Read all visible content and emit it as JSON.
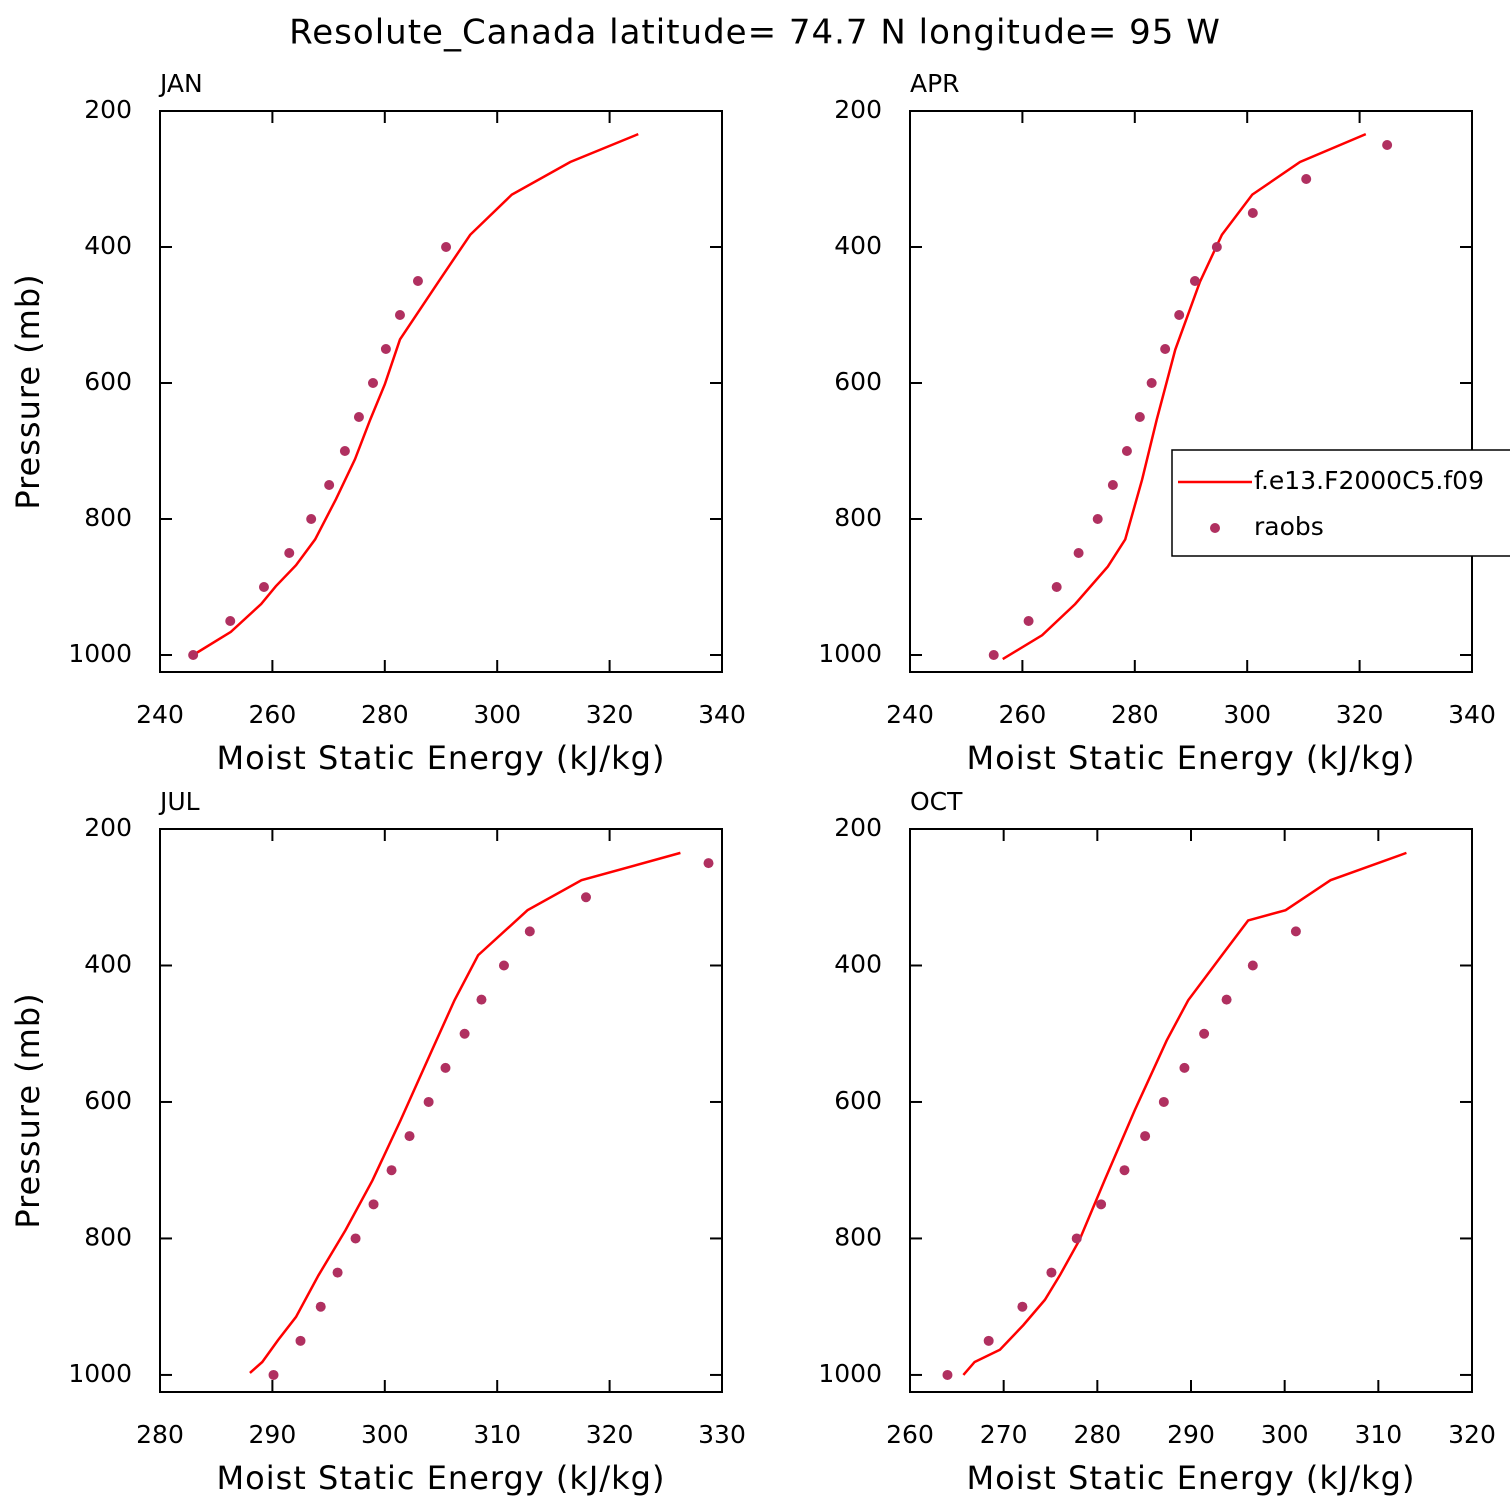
{
  "title": "Resolute_Canada  latitude= 74.7 N longitude= 95 W",
  "chart_data": [
    {
      "type": "line",
      "title": "JAN",
      "xlabel": "Moist Static Energy (kJ/kg)",
      "ylabel": "Pressure (mb)",
      "xlim": [
        240,
        340
      ],
      "xticks": [
        240,
        260,
        280,
        300,
        320,
        340
      ],
      "ylim": [
        1025,
        200
      ],
      "yticks": [
        1000,
        800,
        600,
        400,
        200
      ],
      "series": [
        {
          "type": "line",
          "color": "#ff0000",
          "x": [
            245.9,
            252.6,
            258,
            260.6,
            264.2,
            267.6,
            271.3,
            274.7,
            277.4,
            280,
            282.7,
            289.8,
            295.2,
            302.6,
            313,
            325.1
          ],
          "values": [
            1000,
            966,
            925,
            899,
            868,
            830,
            771,
            712,
            654,
            602,
            536,
            448,
            382,
            323,
            275,
            234
          ]
        },
        {
          "type": "scatter",
          "color": "#b03060",
          "x": [
            245.9,
            252.5,
            258.5,
            263,
            266.9,
            270.1,
            272.9,
            275.4,
            277.9,
            280.2,
            282.7,
            285.9,
            290.9
          ],
          "values": [
            1000,
            950,
            900,
            850,
            800,
            750,
            700,
            650,
            600,
            550,
            500,
            450,
            400
          ]
        }
      ]
    },
    {
      "type": "line",
      "title": "APR",
      "xlabel": "Moist Static Energy (kJ/kg)",
      "xlim": [
        240,
        340
      ],
      "xticks": [
        240,
        260,
        280,
        300,
        320,
        340
      ],
      "ylim": [
        1025,
        200
      ],
      "yticks": [
        1000,
        800,
        600,
        400,
        200
      ],
      "legend": "center right",
      "series": [
        {
          "type": "line",
          "name": "f.e13.F2000C5.f09",
          "color": "#ff0000",
          "x": [
            256.5,
            263.5,
            269.4,
            275.2,
            278.3,
            281.3,
            283.9,
            287.2,
            291.6,
            295.5,
            300.9,
            309.4,
            321.1
          ],
          "values": [
            1006,
            971,
            925,
            870,
            830,
            742,
            654,
            551,
            451,
            382,
            323,
            275,
            234
          ]
        },
        {
          "type": "scatter",
          "name": "raobs",
          "color": "#b03060",
          "x": [
            254.9,
            261.1,
            266.1,
            270,
            273.4,
            276.1,
            278.6,
            280.9,
            283,
            285.4,
            287.9,
            290.7,
            294.6,
            301,
            310.5,
            324.9
          ],
          "values": [
            1000,
            950,
            900,
            850,
            800,
            750,
            700,
            650,
            600,
            550,
            500,
            450,
            400,
            350,
            300,
            250
          ]
        }
      ]
    },
    {
      "type": "line",
      "title": "JUL",
      "xlabel": "Moist Static Energy (kJ/kg)",
      "ylabel": "Pressure (mb)",
      "xlim": [
        280,
        330
      ],
      "xticks": [
        280,
        290,
        300,
        310,
        320,
        330
      ],
      "ylim": [
        1025,
        200
      ],
      "yticks": [
        1000,
        800,
        600,
        400,
        200
      ],
      "series": [
        {
          "type": "line",
          "color": "#ff0000",
          "x": [
            288,
            289.1,
            290.5,
            292.1,
            294.1,
            296.5,
            298.9,
            301.4,
            304.2,
            306.2,
            308.3,
            312.7,
            317.5,
            326.3
          ],
          "values": [
            997,
            981,
            949,
            915,
            854,
            788,
            715,
            627,
            524,
            451,
            385,
            319,
            275,
            235
          ]
        },
        {
          "type": "scatter",
          "color": "#b03060",
          "x": [
            290.1,
            292.5,
            294.3,
            295.8,
            297.4,
            299,
            300.6,
            302.2,
            303.9,
            305.4,
            307.1,
            308.6,
            310.6,
            312.9,
            317.9,
            328.8
          ],
          "values": [
            1000,
            950,
            900,
            850,
            800,
            750,
            700,
            650,
            600,
            550,
            500,
            450,
            400,
            350,
            300,
            250
          ]
        }
      ]
    },
    {
      "type": "line",
      "title": "OCT",
      "xlabel": "Moist Static Energy (kJ/kg)",
      "xlim": [
        260,
        320
      ],
      "xticks": [
        260,
        270,
        280,
        290,
        300,
        310,
        320
      ],
      "ylim": [
        1025,
        200
      ],
      "yticks": [
        1000,
        800,
        600,
        400,
        200
      ],
      "series": [
        {
          "type": "line",
          "color": "#ff0000",
          "x": [
            265.7,
            266.9,
            269.6,
            272.1,
            274.4,
            276,
            278.1,
            280.8,
            284,
            287.4,
            289.7,
            293.3,
            296.1,
            300.1,
            304.9,
            313
          ],
          "values": [
            1000,
            981,
            963,
            927,
            890,
            854,
            802,
            714,
            612,
            510,
            451,
            385,
            334,
            319,
            275,
            235
          ]
        },
        {
          "type": "scatter",
          "color": "#b03060",
          "x": [
            264,
            268.4,
            272,
            275.1,
            277.8,
            280.4,
            282.9,
            285.1,
            287.1,
            289.3,
            291.4,
            293.8,
            296.6,
            301.2
          ],
          "values": [
            1000,
            950,
            900,
            850,
            800,
            750,
            700,
            650,
            600,
            550,
            500,
            450,
            400,
            350
          ]
        }
      ]
    }
  ]
}
